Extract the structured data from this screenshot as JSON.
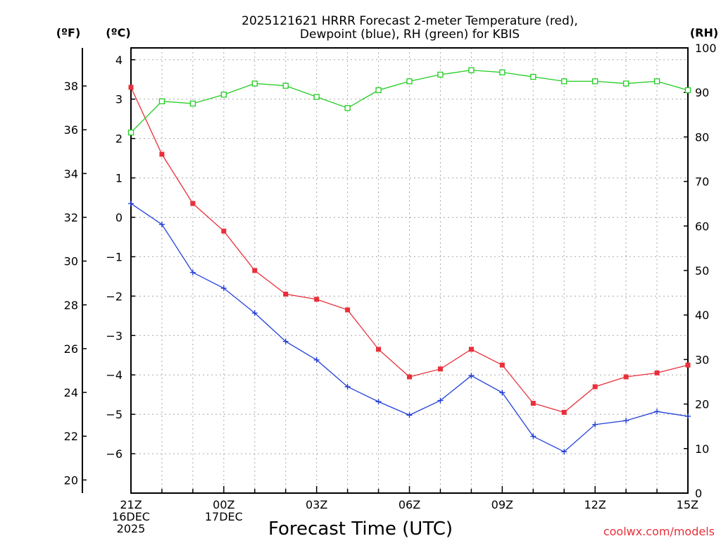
{
  "chart_data": {
    "type": "line",
    "title_lines": [
      "2025121621 HRRR Forecast 2-meter Temperature (red),",
      "Dewpoint (blue), RH (green) for KBIS"
    ],
    "left_axis_unit": "(ºF)",
    "center_axis_unit": "(ºC)",
    "right_axis_unit": "(RH)",
    "xlabel": "Forecast Time (UTC)",
    "credit": "coolwx.com/models",
    "x_hours": [
      0,
      1,
      2,
      3,
      4,
      5,
      6,
      7,
      8,
      9,
      10,
      11,
      12,
      13,
      14,
      15,
      16,
      17,
      18
    ],
    "x_tick_positions": [
      0,
      3,
      6,
      9,
      12,
      15,
      18
    ],
    "x_tick_labels": [
      [
        "21Z",
        "16DEC",
        "2025"
      ],
      [
        "00Z",
        "17DEC"
      ],
      [
        "03Z"
      ],
      [
        "06Z"
      ],
      [
        "09Z"
      ],
      [
        "12Z"
      ],
      [
        "15Z"
      ]
    ],
    "celsius_axis": {
      "min": -7,
      "max": 4.3,
      "ticks": [
        4,
        3,
        2,
        1,
        0,
        -1,
        -2,
        -3,
        -4,
        -5,
        -6
      ],
      "tick_labels": [
        "4",
        "3",
        "2",
        "1",
        "0",
        "−1",
        "−2",
        "−3",
        "−4",
        "−5",
        "−6"
      ]
    },
    "fahrenheit_ticks": [
      38,
      36,
      34,
      32,
      30,
      28,
      26,
      24,
      22,
      20
    ],
    "rh_axis": {
      "min": 0,
      "max": 100,
      "ticks": [
        100,
        90,
        80,
        70,
        60,
        50,
        40,
        30,
        20,
        10,
        0
      ]
    },
    "series": [
      {
        "name": "Temperature",
        "unit": "C",
        "color": "#e8303a",
        "marker": "filled-square",
        "values": [
          3.3,
          1.6,
          0.35,
          -0.35,
          -1.35,
          -1.95,
          -2.08,
          -2.35,
          -3.35,
          -4.05,
          -3.85,
          -3.35,
          -3.75,
          -4.72,
          -4.95,
          -4.3,
          -4.05,
          -3.95,
          -3.75
        ]
      },
      {
        "name": "Dewpoint",
        "unit": "C",
        "color": "#2440d8",
        "marker": "plus",
        "values": [
          0.35,
          -0.18,
          -1.4,
          -1.8,
          -2.43,
          -3.15,
          -3.62,
          -4.3,
          -4.68,
          -5.02,
          -4.65,
          -4.02,
          -4.45,
          -5.56,
          -5.95,
          -5.26,
          -5.16,
          -4.93,
          -5.05
        ]
      },
      {
        "name": "RH",
        "unit": "%",
        "color": "#22cc22",
        "marker": "open-square",
        "values": [
          81,
          88,
          87.5,
          89.5,
          92,
          91.5,
          89,
          86.5,
          90.5,
          92.5,
          94,
          95,
          94.5,
          93.5,
          92.5,
          92.5,
          92,
          92.5,
          90.5
        ]
      }
    ]
  }
}
